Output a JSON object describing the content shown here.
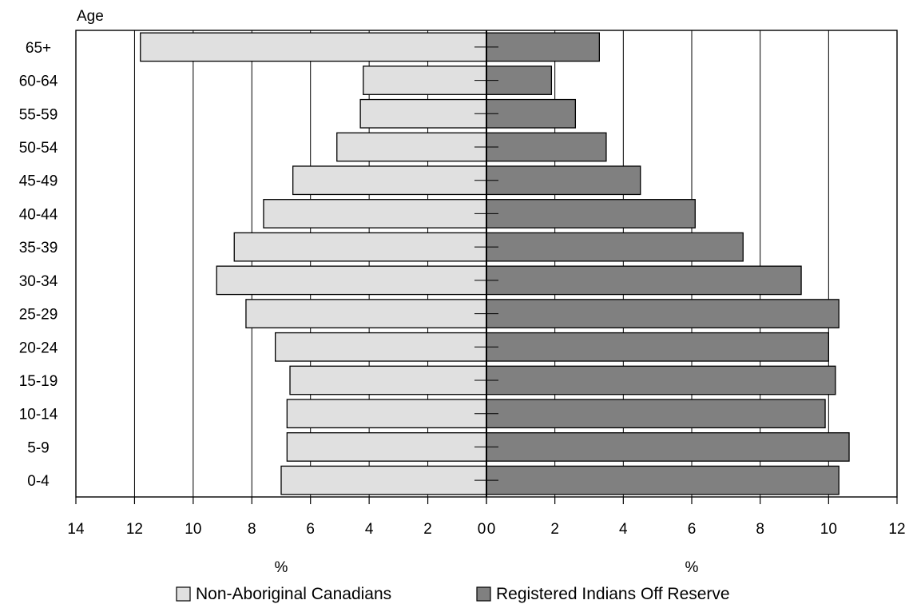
{
  "chart_data": {
    "type": "bar",
    "orientation": "horizontal",
    "layout": "population-pyramid",
    "title": "",
    "ylabel": "Age",
    "xlabel_left": "%",
    "xlabel_right": "%",
    "categories": [
      "0-4",
      "5-9",
      "10-14",
      "15-19",
      "20-24",
      "25-29",
      "30-34",
      "35-39",
      "40-44",
      "45-49",
      "50-54",
      "55-59",
      "60-64",
      "65+"
    ],
    "series": [
      {
        "name": "Non-Aboriginal Canadians",
        "side": "left",
        "color": "#e0e0e0",
        "values": [
          7.0,
          6.8,
          6.8,
          6.7,
          7.2,
          8.2,
          9.2,
          8.6,
          7.6,
          6.6,
          5.1,
          4.3,
          4.2,
          11.8
        ]
      },
      {
        "name": "Registered Indians Off Reserve",
        "side": "right",
        "color": "#808080",
        "values": [
          10.3,
          10.6,
          9.9,
          10.2,
          10.0,
          10.3,
          9.2,
          7.5,
          6.1,
          4.5,
          3.5,
          2.6,
          1.9,
          3.3
        ]
      }
    ],
    "left_axis": {
      "range": [
        0,
        14
      ],
      "ticks": [
        14,
        12,
        10,
        8,
        6,
        4,
        2,
        0
      ]
    },
    "right_axis": {
      "range": [
        0,
        12
      ],
      "ticks": [
        0,
        2,
        4,
        6,
        8,
        10,
        12
      ]
    },
    "grid": "vertical",
    "legend_position": "bottom-center"
  }
}
